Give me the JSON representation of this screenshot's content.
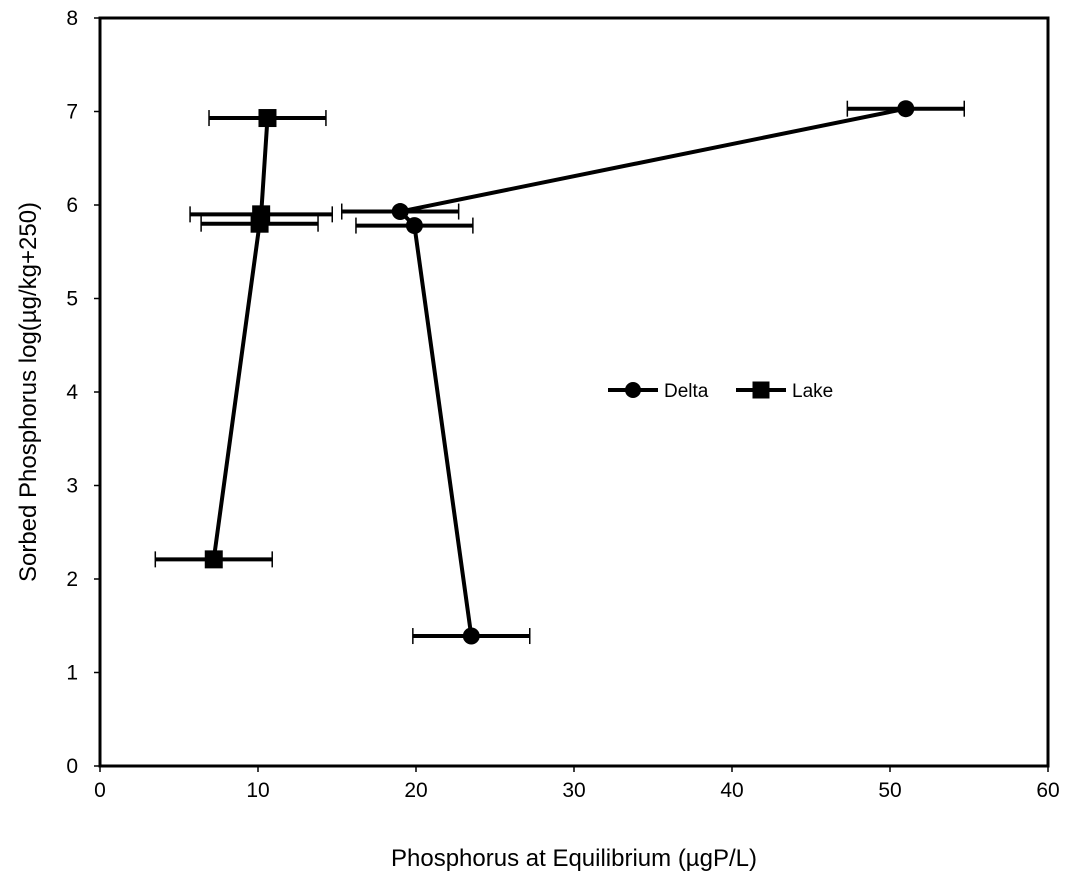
{
  "chart_data": {
    "type": "scatter",
    "title": "",
    "xlabel": "Phosphorus at Equilibrium (µgP/L)",
    "ylabel": "Sorbed Phosphorus log(µg/kg+250)",
    "xlim": [
      0,
      60
    ],
    "ylim": [
      0,
      8
    ],
    "xticks": [
      "0",
      "10",
      "20",
      "30",
      "40",
      "50",
      "60"
    ],
    "yticks": [
      "0",
      "1",
      "2",
      "3",
      "4",
      "5",
      "6",
      "7",
      "8"
    ],
    "grid": false,
    "legend_position": "center-right",
    "series": [
      {
        "name": "Delta",
        "marker": "circle",
        "color": "#000000",
        "points": [
          {
            "x": 51.0,
            "y": 7.03,
            "xerr": 3.7
          },
          {
            "x": 19.0,
            "y": 5.93,
            "xerr": 3.7
          },
          {
            "x": 19.9,
            "y": 5.78,
            "xerr": 3.7
          },
          {
            "x": 23.5,
            "y": 1.39,
            "xerr": 3.7
          }
        ]
      },
      {
        "name": "Lake",
        "marker": "square",
        "color": "#000000",
        "points": [
          {
            "x": 10.6,
            "y": 6.93,
            "xerr": 3.7
          },
          {
            "x": 10.2,
            "y": 5.9,
            "xerr": 4.5
          },
          {
            "x": 10.1,
            "y": 5.8,
            "xerr": 3.7
          },
          {
            "x": 7.2,
            "y": 2.21,
            "xerr": 3.7
          }
        ]
      }
    ]
  }
}
